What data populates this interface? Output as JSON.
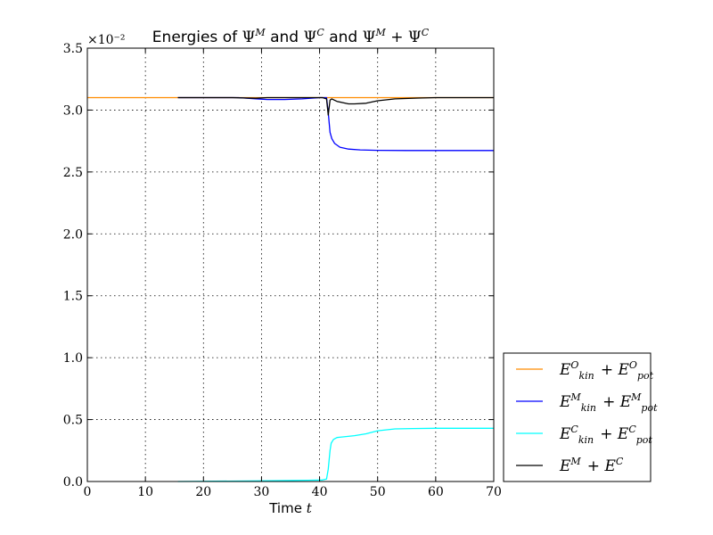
{
  "chart_data": {
    "type": "line",
    "title": "Energies of Ψᴹ and Ψᶜ and Ψᴹ + Ψᶜ",
    "xlabel": "Time t",
    "ylabel": "",
    "y_multiplier": "×10⁻²",
    "xlim": [
      0,
      70
    ],
    "ylim": [
      0.0,
      3.5
    ],
    "xticks": [
      0,
      10,
      20,
      30,
      40,
      50,
      60,
      70
    ],
    "yticks": [
      0.0,
      0.5,
      1.0,
      1.5,
      2.0,
      2.5,
      3.0,
      3.5
    ],
    "grid": true,
    "legend_position": "outside-bottom-right",
    "series": [
      {
        "name": "E_kin^O + E_pot^O",
        "color": "#ff8c00",
        "x": [
          0,
          70
        ],
        "y": [
          3.1,
          3.1
        ]
      },
      {
        "name": "E_kin^M + E_pot^M",
        "color": "#0000ff",
        "x": [
          15.6,
          20,
          26,
          29,
          31,
          34,
          37,
          40,
          41.2,
          41.5,
          41.8,
          42.1,
          42.6,
          43.5,
          45,
          47,
          50,
          55,
          60,
          70
        ],
        "y": [
          3.1,
          3.1,
          3.1,
          3.09,
          3.085,
          3.085,
          3.09,
          3.1,
          3.1,
          2.98,
          2.82,
          2.77,
          2.73,
          2.7,
          2.685,
          2.678,
          2.675,
          2.673,
          2.673,
          2.673
        ]
      },
      {
        "name": "E_kin^C + E_pot^C",
        "color": "#00ffff",
        "x": [
          15.6,
          30,
          38,
          40.5,
          41.2,
          41.5,
          41.8,
          42,
          42.4,
          43,
          44,
          46,
          48,
          50,
          53,
          56,
          60,
          70
        ],
        "y": [
          0.0,
          0.005,
          0.01,
          0.012,
          0.02,
          0.1,
          0.25,
          0.31,
          0.34,
          0.355,
          0.36,
          0.37,
          0.385,
          0.41,
          0.425,
          0.428,
          0.43,
          0.43
        ]
      },
      {
        "name": "E^M + E^C",
        "color": "#000000",
        "x": [
          15.6,
          25,
          29,
          31,
          35,
          39,
          40.5,
          41.2,
          41.5,
          41.8,
          42.1,
          43,
          44,
          45,
          46,
          48,
          50,
          53,
          57,
          60,
          70
        ],
        "y": [
          3.1,
          3.1,
          3.095,
          3.1,
          3.1,
          3.1,
          3.1,
          3.09,
          2.96,
          3.08,
          3.09,
          3.07,
          3.06,
          3.05,
          3.05,
          3.055,
          3.075,
          3.09,
          3.097,
          3.1,
          3.1
        ]
      }
    ],
    "legend": [
      {
        "base": "E",
        "sub": "kin",
        "sup": "O",
        "op": " + ",
        "base2": "E",
        "sub2": "pot",
        "sup2": "O"
      },
      {
        "base": "E",
        "sub": "kin",
        "sup": "M",
        "op": " + ",
        "base2": "E",
        "sub2": "pot",
        "sup2": "M"
      },
      {
        "base": "E",
        "sub": "kin",
        "sup": "C",
        "op": " + ",
        "base2": "E",
        "sub2": "pot",
        "sup2": "C"
      },
      {
        "base": "E",
        "sub": "",
        "sup": "M",
        "op": " + ",
        "base2": "E",
        "sub2": "",
        "sup2": "C"
      }
    ]
  }
}
